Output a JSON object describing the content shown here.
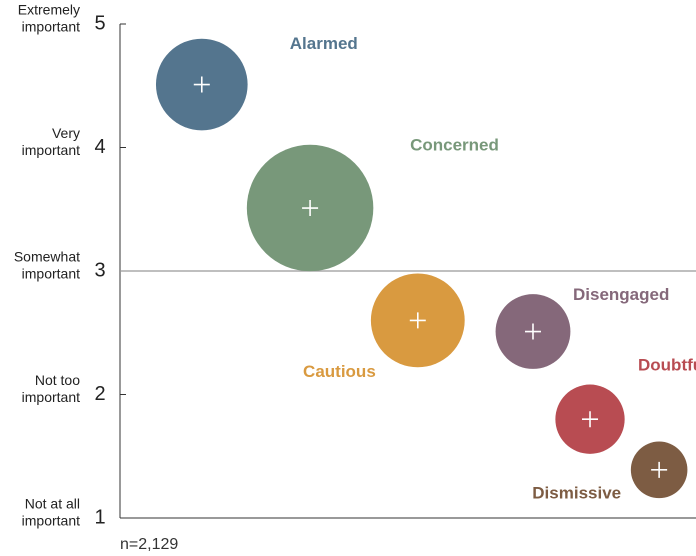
{
  "chart_data": {
    "type": "bubble",
    "note": "n=2,129",
    "ylim": [
      1,
      5
    ],
    "yticks": [
      1,
      2,
      3,
      4,
      5
    ],
    "ytick_descriptions": [
      [
        "Not at all",
        "important"
      ],
      [
        "Not too",
        "important"
      ],
      [
        "Somewhat",
        "important"
      ],
      [
        "Very",
        "important"
      ],
      [
        "Extremely",
        "important"
      ]
    ],
    "reference_line": 3,
    "xlim": [
      0,
      100
    ],
    "series": [
      {
        "name": "Alarmed",
        "color": "#54758e",
        "x": [
          14.2
        ],
        "values": [
          4.51
        ],
        "sizes": [
          21
        ]
      },
      {
        "name": "Concerned",
        "color": "#78987a",
        "x": [
          33.0
        ],
        "values": [
          3.51
        ],
        "sizes": [
          40
        ]
      },
      {
        "name": "Cautious",
        "color": "#d99a40",
        "x": [
          51.7
        ],
        "values": [
          2.6
        ],
        "sizes": [
          22
        ]
      },
      {
        "name": "Disengaged",
        "color": "#85687a",
        "x": [
          71.7
        ],
        "values": [
          2.51
        ],
        "sizes": [
          14
        ]
      },
      {
        "name": "Doubtful",
        "color": "#b84c52",
        "x": [
          81.6
        ],
        "values": [
          1.8
        ],
        "sizes": [
          12
        ]
      },
      {
        "name": "Dismissive",
        "color": "#7d5c43",
        "x": [
          93.6
        ],
        "values": [
          1.39
        ],
        "sizes": [
          8
        ]
      }
    ]
  }
}
